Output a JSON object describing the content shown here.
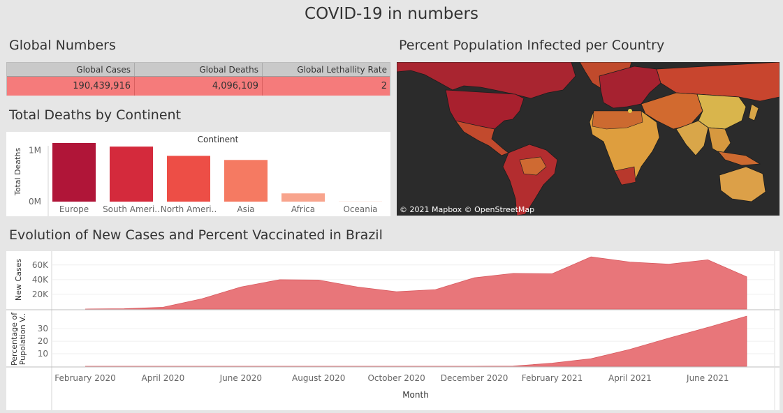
{
  "title": "COVID-19 in numbers",
  "global": {
    "heading": "Global Numbers",
    "columns": [
      "Global Cases",
      "Global Deaths",
      "Global Lethallity Rate"
    ],
    "values": [
      "190,439,916",
      "4,096,109",
      "2"
    ]
  },
  "continent": {
    "heading": "Total Deaths by Continent"
  },
  "map": {
    "heading": "Percent Population Infected per Country",
    "attribution": "© 2021 Mapbox © OpenStreetMap"
  },
  "brazil": {
    "heading": "Evolution of New Cases and Percent Vaccinated in Brazil"
  },
  "chart_data": [
    {
      "type": "bar",
      "title": "",
      "xlabel": "Continent",
      "ylabel": "Total Deaths",
      "categories": [
        "Europe",
        "South Ameri..",
        "North Ameri..",
        "Asia",
        "Africa",
        "Oceania"
      ],
      "values": [
        1140000,
        1070000,
        890000,
        810000,
        160000,
        1000
      ],
      "colors": [
        "#b01538",
        "#d42a3c",
        "#ed4e46",
        "#f57a62",
        "#f8a48d",
        "#fde0d6"
      ],
      "yticks": [
        "1M",
        "0M"
      ],
      "ylim": [
        0,
        1400000
      ],
      "grid": false
    },
    {
      "type": "area",
      "title": "",
      "xlabel": "Month",
      "ylabel": "New Cases",
      "x": [
        "2020-02",
        "2020-03",
        "2020-04",
        "2020-05",
        "2020-06",
        "2020-07",
        "2020-08",
        "2020-09",
        "2020-10",
        "2020-11",
        "2020-12",
        "2021-01",
        "2021-02",
        "2021-03",
        "2021-04",
        "2021-05",
        "2021-06",
        "2021-07"
      ],
      "values": [
        0,
        500,
        2500,
        14000,
        30000,
        40000,
        39500,
        30000,
        23500,
        26500,
        42500,
        48500,
        48000,
        71000,
        64000,
        61000,
        67000,
        44000
      ],
      "yticks": [
        "60K",
        "40K",
        "20K"
      ],
      "ylim": [
        0,
        75000
      ],
      "color": "#e8767a"
    },
    {
      "type": "area",
      "title": "",
      "xlabel": "Month",
      "ylabel": "Percentage of Pupolation V..",
      "x": [
        "2020-02",
        "2020-03",
        "2020-04",
        "2020-05",
        "2020-06",
        "2020-07",
        "2020-08",
        "2020-09",
        "2020-10",
        "2020-11",
        "2020-12",
        "2021-01",
        "2021-02",
        "2021-03",
        "2021-04",
        "2021-05",
        "2021-06",
        "2021-07"
      ],
      "values": [
        0,
        0,
        0,
        0,
        0,
        0,
        0,
        0,
        0,
        0,
        0,
        0.1,
        2.5,
        6,
        13.5,
        22.5,
        31,
        40
      ],
      "yticks": [
        "30",
        "20",
        "10"
      ],
      "ylim": [
        0,
        44
      ],
      "color": "#e8767a",
      "xticks": [
        "February 2020",
        "April 2020",
        "June 2020",
        "August 2020",
        "October 2020",
        "December 2020",
        "February 2021",
        "April 2021",
        "June 2021"
      ]
    }
  ]
}
